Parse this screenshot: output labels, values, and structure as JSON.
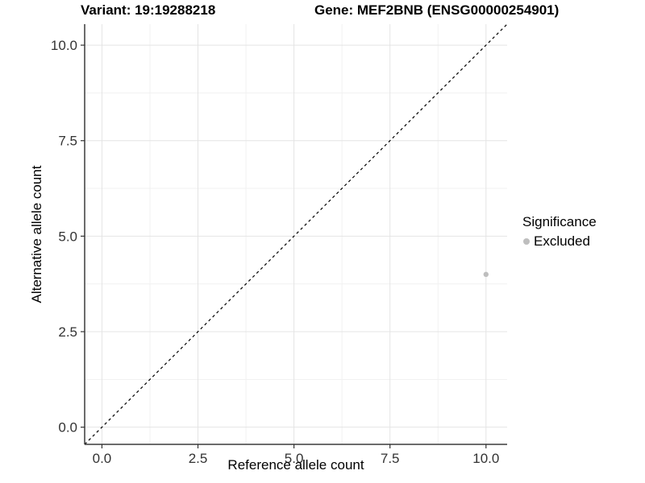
{
  "header": {
    "variant_title": "Variant: 19:19288218",
    "gene_title": "Gene: MEF2BNB (ENSG00000254901)"
  },
  "legend": {
    "title": "Significance",
    "items": [
      {
        "label": "Excluded",
        "color": "#bebebe"
      }
    ]
  },
  "chart_data": {
    "type": "scatter",
    "title": "",
    "xlabel": "Reference allele count",
    "ylabel": "Alternative allele count",
    "xlim": [
      -0.45,
      10.55
    ],
    "ylim": [
      -0.45,
      10.55
    ],
    "xticks": {
      "values": [
        0,
        2.5,
        5,
        7.5,
        10
      ],
      "labels": [
        "0.0",
        "2.5",
        "5.0",
        "7.5",
        "10.0"
      ]
    },
    "yticks": {
      "values": [
        0,
        2.5,
        5,
        7.5,
        10
      ],
      "labels": [
        "0.0",
        "2.5",
        "5.0",
        "7.5",
        "10.0"
      ]
    },
    "minor_gridlines": [
      1.25,
      3.75,
      6.25,
      8.75
    ],
    "grid": true,
    "legend_position": "right",
    "identity_line": {
      "slope": 1,
      "intercept": 0,
      "style": "dashed",
      "color": "#000000"
    },
    "series": [
      {
        "name": "Excluded",
        "color": "#bebebe",
        "points": [
          {
            "x": 10,
            "y": 4
          }
        ]
      }
    ]
  },
  "colors": {
    "background": "#ffffff",
    "major_grid": "#e4e4e4",
    "minor_grid": "#f1f1f1",
    "axis_line": "#3c3c3c",
    "tick_mark": "#333333",
    "tick_text": "#333333",
    "point": "#bebebe"
  }
}
